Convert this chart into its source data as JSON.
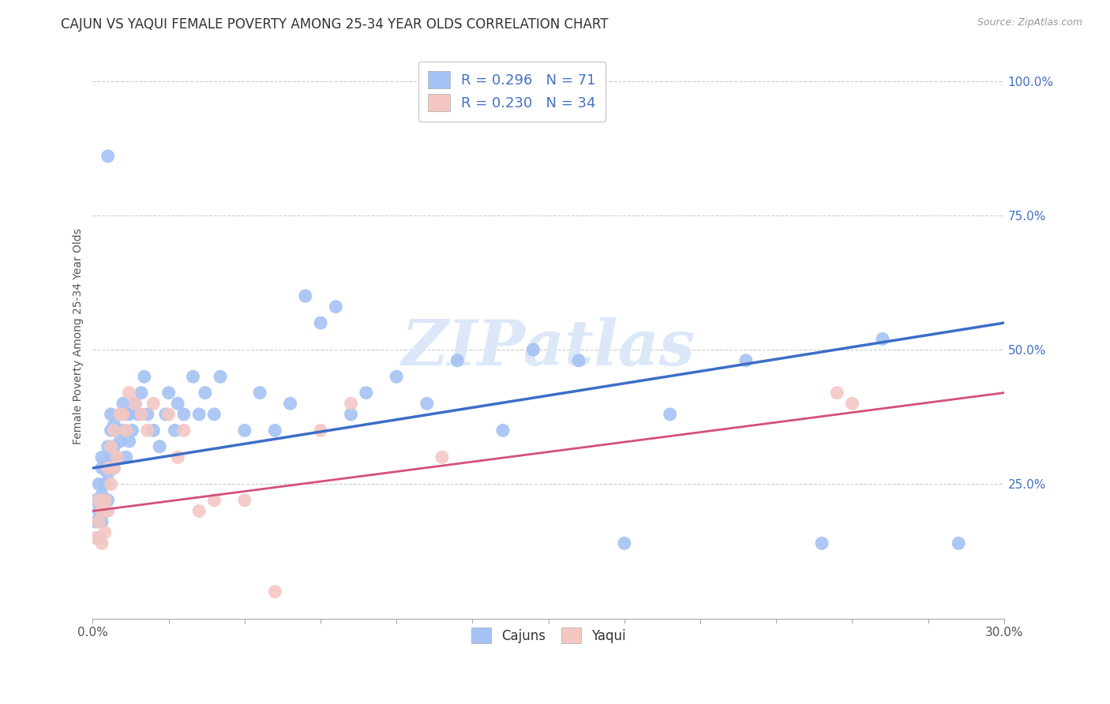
{
  "title": "CAJUN VS YAQUI FEMALE POVERTY AMONG 25-34 YEAR OLDS CORRELATION CHART",
  "source": "Source: ZipAtlas.com",
  "ylabel": "Female Poverty Among 25-34 Year Olds",
  "xlim": [
    0.0,
    0.3
  ],
  "ylim": [
    0.0,
    1.05
  ],
  "xticks": [
    0.0,
    0.025,
    0.05,
    0.075,
    0.1,
    0.125,
    0.15,
    0.175,
    0.2,
    0.225,
    0.25,
    0.275,
    0.3
  ],
  "xticklabels": [
    "0.0%",
    "",
    "",
    "",
    "",
    "",
    "",
    "",
    "",
    "",
    "",
    "",
    "30.0%"
  ],
  "yticks_right": [
    0.25,
    0.5,
    0.75,
    1.0
  ],
  "yticklabels_right": [
    "25.0%",
    "50.0%",
    "75.0%",
    "100.0%"
  ],
  "legend_labels": [
    "Cajuns",
    "Yaqui"
  ],
  "cajun_R": "0.296",
  "cajun_N": "71",
  "yaqui_R": "0.230",
  "yaqui_N": "34",
  "blue_color": "#a4c2f4",
  "pink_color": "#f4c7c3",
  "blue_line_color": "#3c6ec7",
  "pink_line_color": "#d45079",
  "watermark_color": "#dce8f8",
  "background_color": "#ffffff",
  "grid_color": "#cccccc",
  "cajun_x": [
    0.001,
    0.001,
    0.002,
    0.002,
    0.002,
    0.003,
    0.003,
    0.003,
    0.003,
    0.004,
    0.004,
    0.004,
    0.005,
    0.005,
    0.005,
    0.005,
    0.006,
    0.006,
    0.006,
    0.007,
    0.007,
    0.007,
    0.008,
    0.008,
    0.009,
    0.009,
    0.01,
    0.01,
    0.011,
    0.011,
    0.012,
    0.012,
    0.013,
    0.014,
    0.015,
    0.016,
    0.017,
    0.018,
    0.02,
    0.022,
    0.024,
    0.025,
    0.027,
    0.028,
    0.03,
    0.033,
    0.035,
    0.037,
    0.04,
    0.042,
    0.05,
    0.055,
    0.06,
    0.065,
    0.07,
    0.075,
    0.08,
    0.085,
    0.09,
    0.1,
    0.11,
    0.12,
    0.135,
    0.145,
    0.16,
    0.175,
    0.19,
    0.215,
    0.24,
    0.26,
    0.285
  ],
  "cajun_y": [
    0.18,
    0.22,
    0.15,
    0.2,
    0.25,
    0.18,
    0.23,
    0.28,
    0.3,
    0.2,
    0.25,
    0.28,
    0.22,
    0.27,
    0.32,
    0.86,
    0.3,
    0.35,
    0.38,
    0.28,
    0.32,
    0.36,
    0.3,
    0.35,
    0.33,
    0.38,
    0.35,
    0.4,
    0.3,
    0.38,
    0.33,
    0.38,
    0.35,
    0.4,
    0.38,
    0.42,
    0.45,
    0.38,
    0.35,
    0.32,
    0.38,
    0.42,
    0.35,
    0.4,
    0.38,
    0.45,
    0.38,
    0.42,
    0.38,
    0.45,
    0.35,
    0.42,
    0.35,
    0.4,
    0.6,
    0.55,
    0.58,
    0.38,
    0.42,
    0.45,
    0.4,
    0.48,
    0.35,
    0.5,
    0.48,
    0.14,
    0.38,
    0.48,
    0.14,
    0.52,
    0.14
  ],
  "yaqui_x": [
    0.001,
    0.002,
    0.002,
    0.003,
    0.003,
    0.004,
    0.004,
    0.005,
    0.005,
    0.006,
    0.006,
    0.007,
    0.007,
    0.008,
    0.009,
    0.01,
    0.011,
    0.012,
    0.014,
    0.016,
    0.018,
    0.02,
    0.025,
    0.028,
    0.03,
    0.035,
    0.04,
    0.05,
    0.06,
    0.075,
    0.085,
    0.115,
    0.245,
    0.25
  ],
  "yaqui_y": [
    0.15,
    0.18,
    0.22,
    0.14,
    0.2,
    0.16,
    0.22,
    0.28,
    0.2,
    0.25,
    0.32,
    0.28,
    0.35,
    0.3,
    0.38,
    0.38,
    0.35,
    0.42,
    0.4,
    0.38,
    0.35,
    0.4,
    0.38,
    0.3,
    0.35,
    0.2,
    0.22,
    0.22,
    0.05,
    0.35,
    0.4,
    0.3,
    0.42,
    0.4
  ],
  "cajun_trend_x": [
    0.0,
    0.3
  ],
  "cajun_trend_y": [
    0.28,
    0.55
  ],
  "yaqui_trend_x": [
    0.0,
    0.3
  ],
  "yaqui_trend_y": [
    0.2,
    0.42
  ],
  "title_fontsize": 12,
  "label_fontsize": 10,
  "tick_fontsize": 11,
  "legend_fontsize": 13
}
